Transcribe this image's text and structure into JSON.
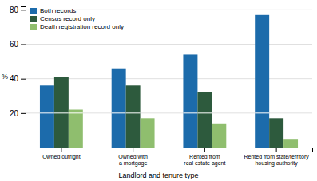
{
  "chart_data": {
    "type": "bar",
    "categories": [
      "Owned outright",
      "Owned with\na mortgage",
      "Rented from\nreal estate agent",
      "Rented from state/territory\nhousing authority"
    ],
    "series": [
      {
        "name": "Both records",
        "color": "#1c6bab",
        "values": [
          36,
          46,
          54,
          77
        ]
      },
      {
        "name": "Census record only",
        "color": "#2d5a3d",
        "values": [
          41,
          36,
          32,
          17
        ]
      },
      {
        "name": "Death registration record only",
        "color": "#8fbe6e",
        "values": [
          22,
          17,
          14,
          5
        ]
      }
    ],
    "ylabel": "%",
    "xlabel": "Landlord and tenure type",
    "ylim": [
      0,
      82
    ],
    "yticks": [
      20,
      40,
      60,
      80
    ],
    "grid": true,
    "legend": "upper left",
    "bar_divider": 20
  }
}
